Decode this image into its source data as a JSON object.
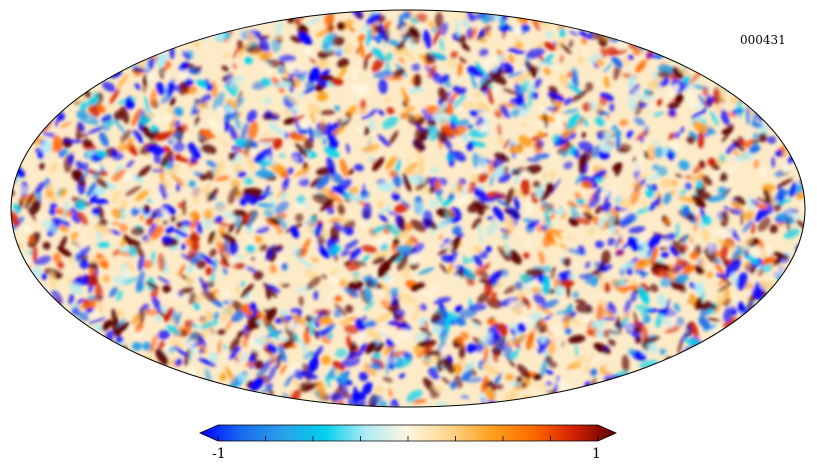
{
  "map": {
    "id_label": "000431",
    "projection": "mollweide"
  },
  "colorbar": {
    "min_label": "-1",
    "max_label": "1",
    "tick_count": 9,
    "colors": [
      "#0000ff",
      "#1a6cf0",
      "#2aa0ea",
      "#00d0ee",
      "#b0ecf4",
      "#fff6e0",
      "#ffd58a",
      "#ffa020",
      "#ff6a00",
      "#d22000",
      "#5a0000"
    ]
  }
}
